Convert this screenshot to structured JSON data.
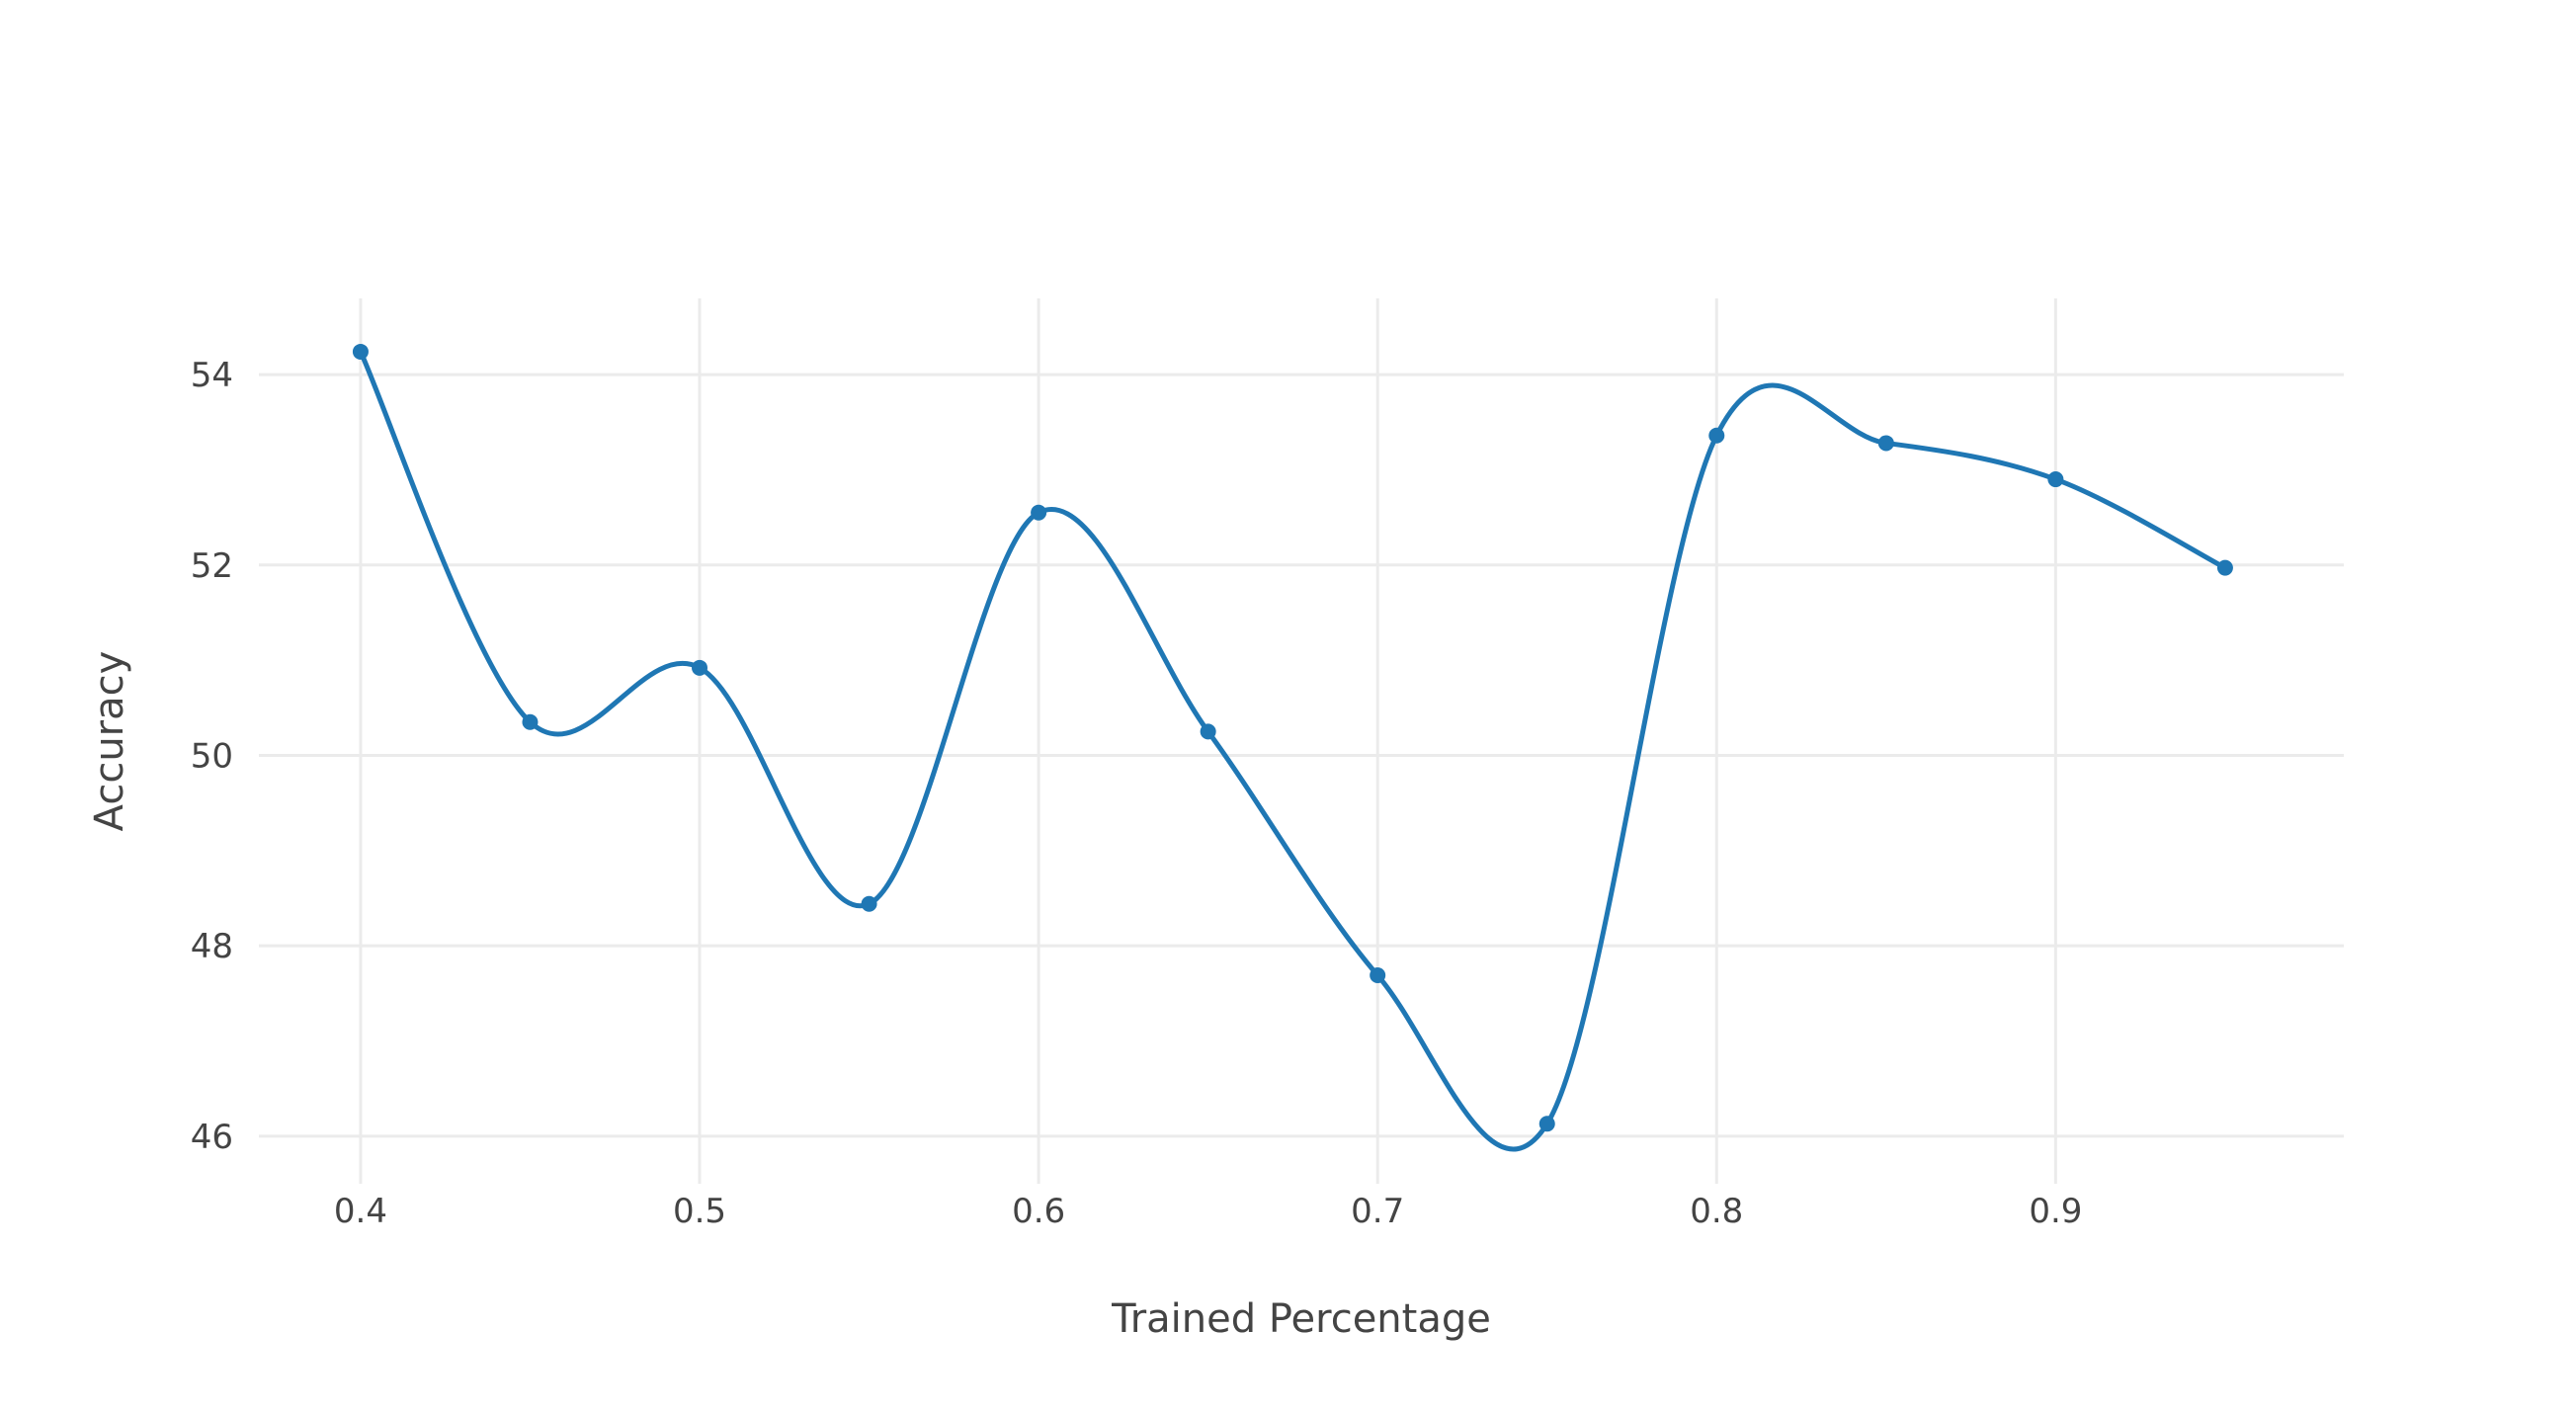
{
  "chart_data": {
    "type": "line",
    "title": "",
    "xlabel": "Trained Percentage",
    "ylabel": "Accuracy",
    "xlim": [
      0.37,
      0.985
    ],
    "ylim": [
      45.5,
      54.8
    ],
    "x_ticks": [
      0.4,
      0.5,
      0.6,
      0.7,
      0.8,
      0.9
    ],
    "x_tick_labels": [
      "0.4",
      "0.5",
      "0.6",
      "0.7",
      "0.8",
      "0.9"
    ],
    "y_ticks": [
      46,
      48,
      50,
      52,
      54
    ],
    "y_tick_labels": [
      "46",
      "48",
      "50",
      "52",
      "54"
    ],
    "grid": true,
    "legend": false,
    "line_shape": "spline",
    "colors": {
      "series": "#1f77b4",
      "grid": "#ebebeb",
      "text": "#444444"
    },
    "series": [
      {
        "x": [
          0.4,
          0.45,
          0.5,
          0.55,
          0.6,
          0.65,
          0.7,
          0.75,
          0.8,
          0.85,
          0.9,
          0.95
        ],
        "y": [
          54.24,
          50.35,
          50.92,
          48.44,
          52.55,
          50.25,
          47.69,
          46.13,
          53.36,
          53.28,
          52.9,
          51.97
        ]
      }
    ]
  }
}
